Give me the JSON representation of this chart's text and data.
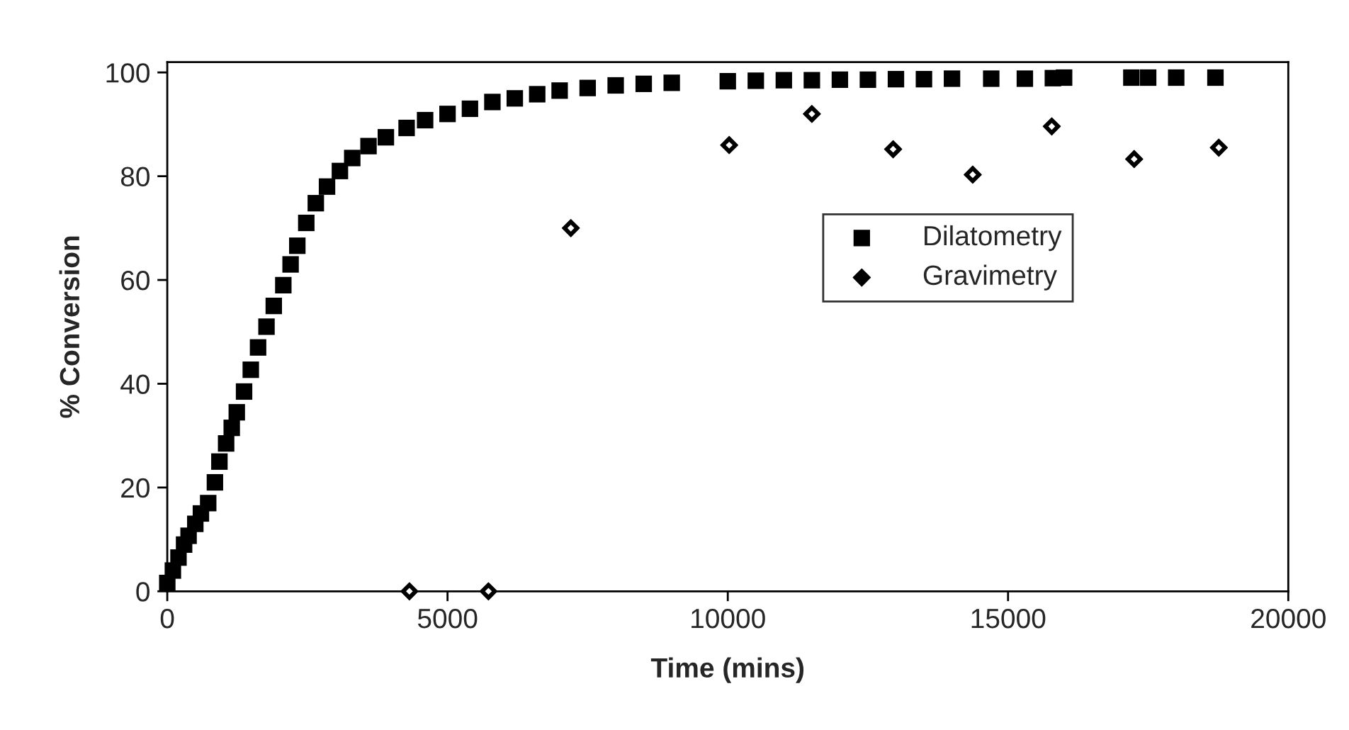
{
  "chart_data": {
    "type": "scatter",
    "xlabel": "Time (mins)",
    "ylabel": "% Conversion",
    "xlim": [
      0,
      20000
    ],
    "ylim": [
      0,
      102
    ],
    "xticks": [
      0,
      5000,
      10000,
      15000,
      20000
    ],
    "yticks": [
      0,
      20,
      40,
      60,
      80,
      100
    ],
    "grid": false,
    "legend": "right",
    "series": [
      {
        "name": "Dilatometry",
        "color": "#000000",
        "marker": "square",
        "x": [
          0,
          100,
          200,
          300,
          380,
          500,
          600,
          730,
          850,
          930,
          1050,
          1150,
          1240,
          1370,
          1490,
          1620,
          1770,
          1900,
          2070,
          2200,
          2320,
          2480,
          2650,
          2850,
          3080,
          3300,
          3590,
          3900,
          4270,
          4600,
          5000,
          5400,
          5800,
          6200,
          6600,
          7000,
          7500,
          8000,
          8500,
          9000,
          10000,
          10500,
          11000,
          11500,
          12000,
          12500,
          13000,
          13500,
          14000,
          14700,
          15300,
          15800,
          16000,
          17200,
          17500,
          18000,
          18700
        ],
        "values": [
          1.6,
          4,
          6.5,
          9,
          10.7,
          13,
          15,
          17,
          21,
          25,
          28.5,
          31.5,
          34.5,
          38.5,
          42.7,
          47,
          51,
          55,
          59,
          63,
          66.6,
          71,
          74.8,
          78,
          81,
          83.5,
          85.8,
          87.5,
          89.3,
          90.8,
          92,
          93,
          94.3,
          95,
          95.8,
          96.5,
          97,
          97.5,
          97.8,
          98,
          98.3,
          98.4,
          98.5,
          98.5,
          98.6,
          98.6,
          98.7,
          98.7,
          98.8,
          98.8,
          98.8,
          98.9,
          99,
          99,
          99,
          99,
          99
        ]
      },
      {
        "name": "Gravimetry",
        "color": "#000000",
        "marker": "diamond",
        "x": [
          4320,
          5730,
          7200,
          10025,
          11500,
          12950,
          14370,
          15780,
          17250,
          18760
        ],
        "values": [
          0,
          0,
          70,
          86,
          92,
          85.2,
          80.3,
          89.6,
          83.3,
          85.5
        ]
      }
    ]
  }
}
